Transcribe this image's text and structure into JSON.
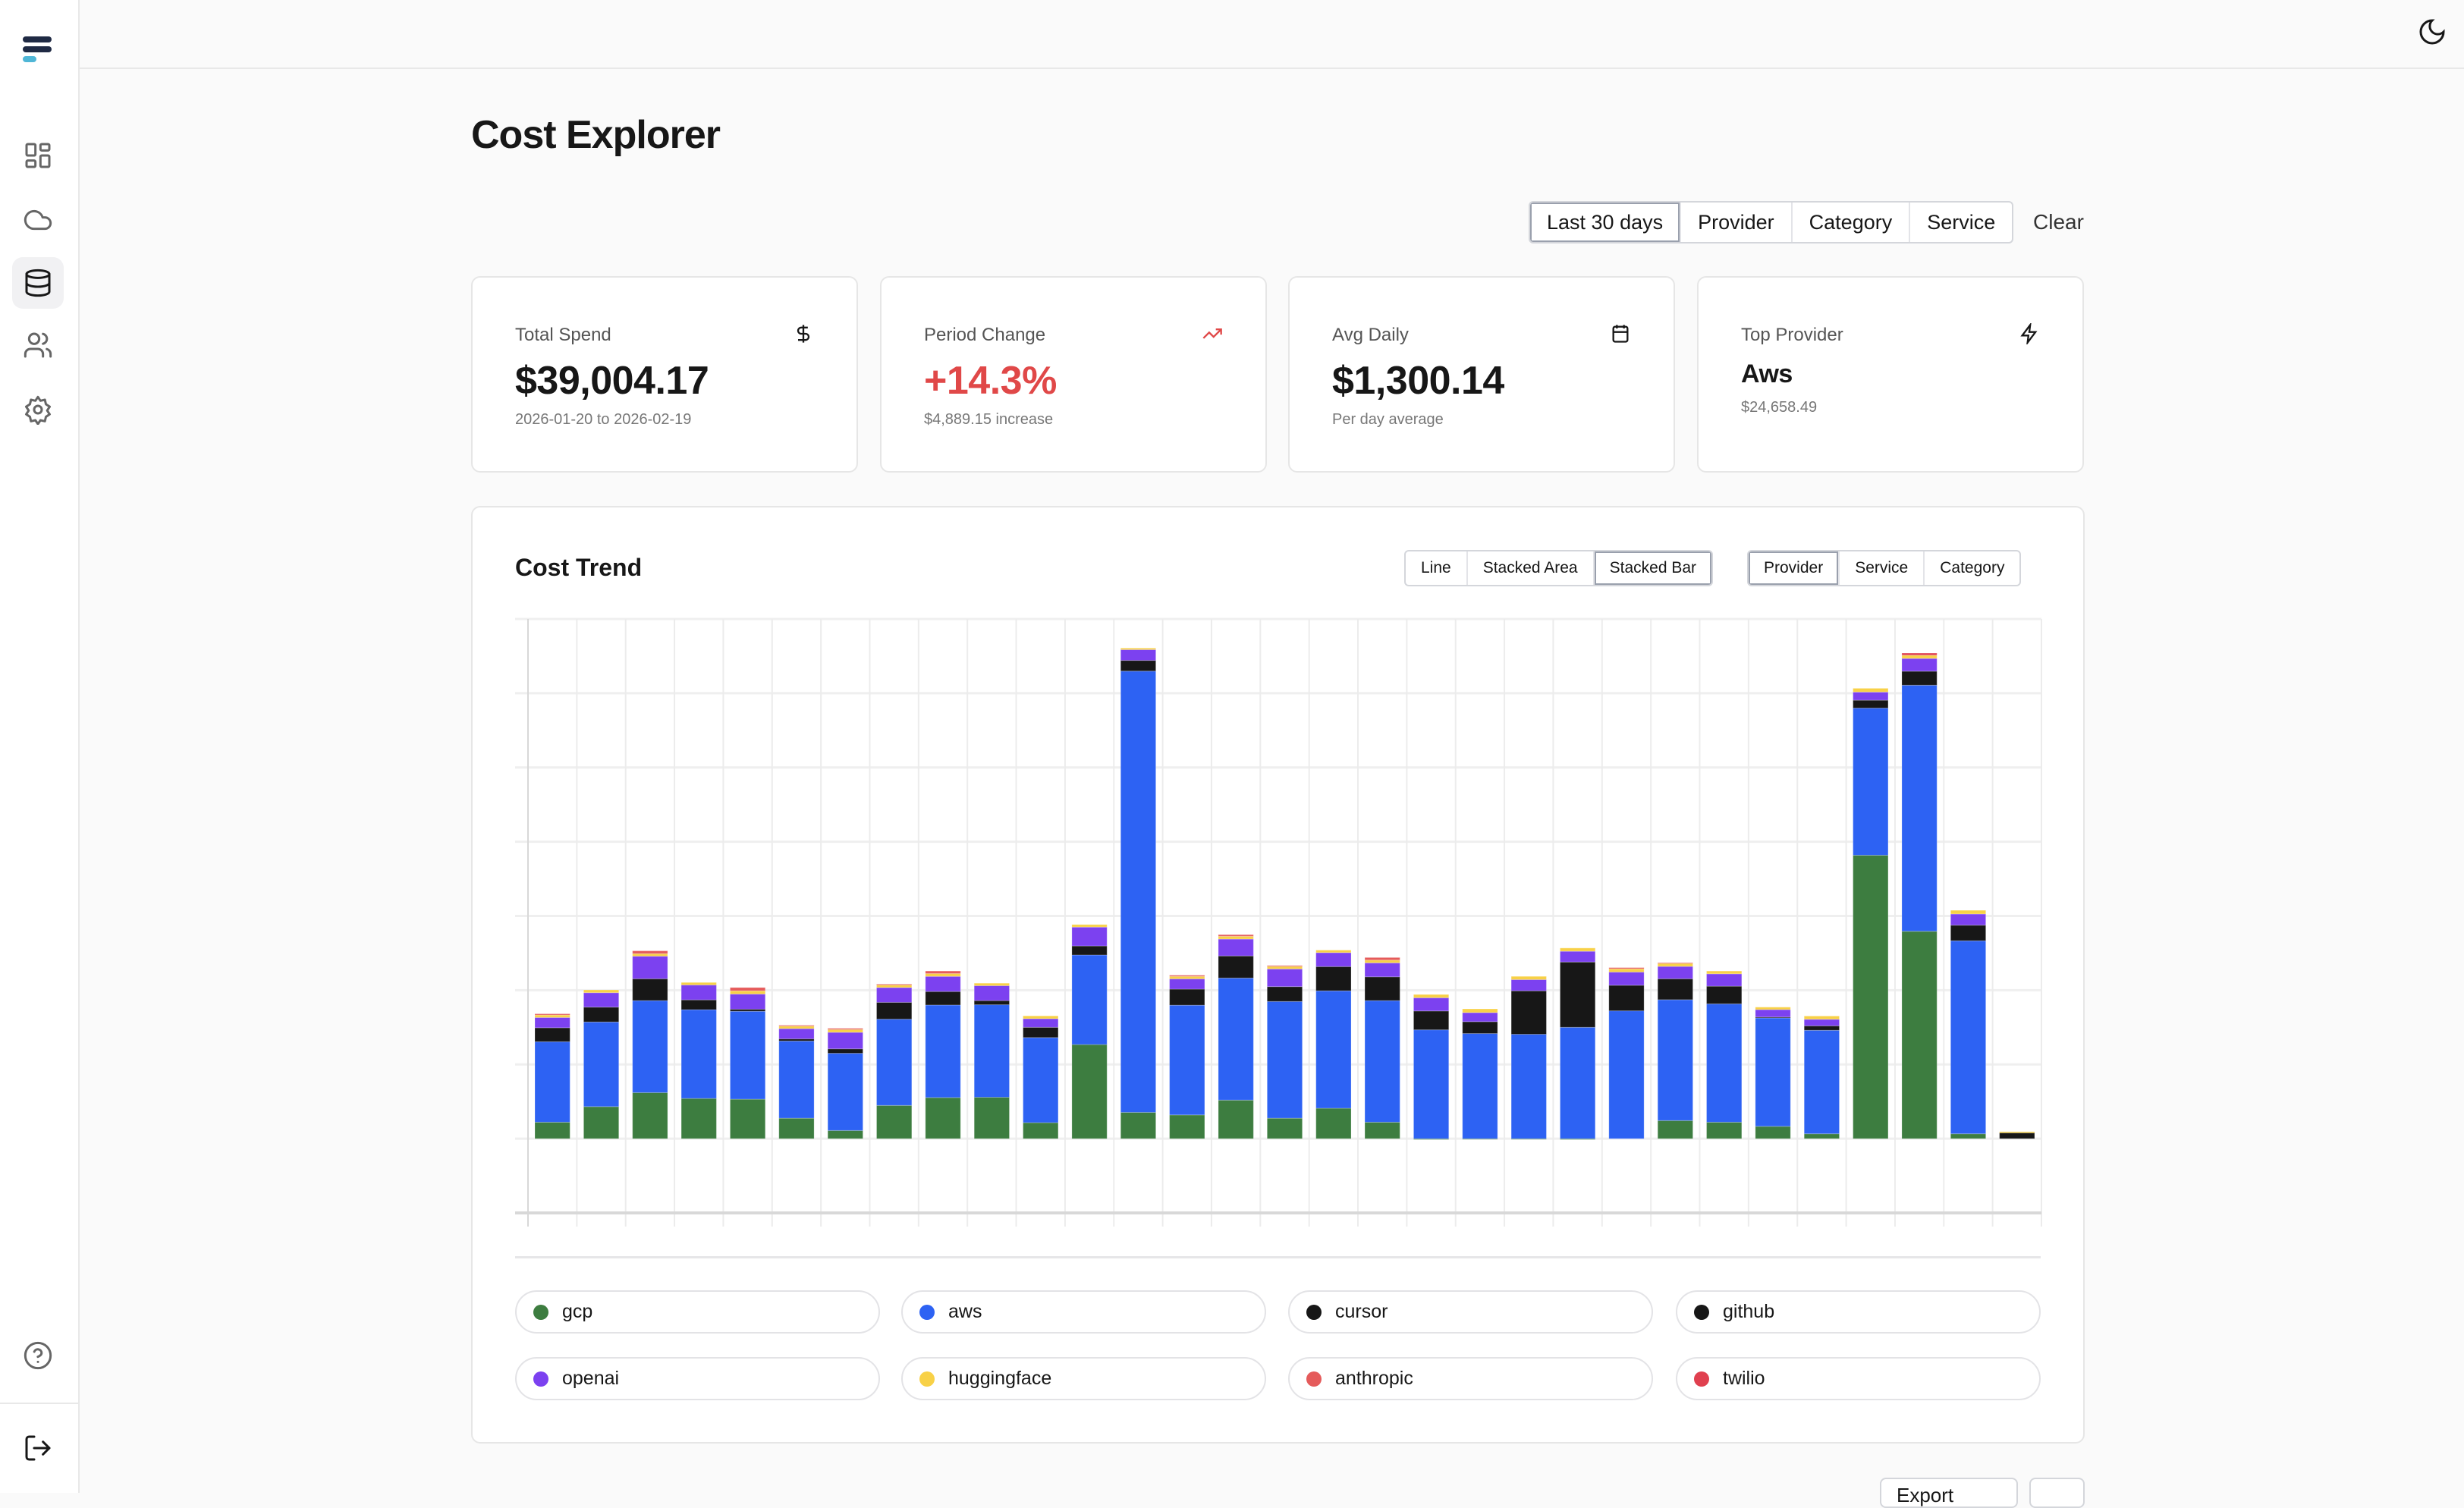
{
  "app": {
    "active_nav": "data"
  },
  "sidebar": {
    "items": [
      {
        "name": "dashboard",
        "icon": "grid-icon"
      },
      {
        "name": "cloud",
        "icon": "cloud-icon"
      },
      {
        "name": "data",
        "icon": "database-icon"
      },
      {
        "name": "users",
        "icon": "users-icon"
      },
      {
        "name": "settings",
        "icon": "gear-icon"
      }
    ],
    "bottom": [
      "help-icon",
      "logout-icon"
    ]
  },
  "header": {
    "theme_icon": "moon-icon"
  },
  "page": {
    "title": "Cost Explorer"
  },
  "filters": {
    "items": [
      "Last 30 days",
      "Provider",
      "Category",
      "Service"
    ],
    "clear": "Clear"
  },
  "kpis": [
    {
      "label": "Total Spend",
      "value": "$39,004.17",
      "sub": "2026-01-20 to 2026-02-19",
      "icon": "dollar-icon"
    },
    {
      "label": "Period Change",
      "value": "+14.3%",
      "sub": "$4,889.15 increase",
      "icon": "trending-up-icon",
      "color": "#e04848"
    },
    {
      "label": "Avg Daily",
      "value": "$1,300.14",
      "sub": "Per day average",
      "icon": "calendar-icon"
    },
    {
      "label": "Top Provider",
      "value": "Aws",
      "sub": "$24,658.49",
      "icon": "zap-icon"
    }
  ],
  "cost_trend": {
    "title": "Cost Trend",
    "chart_types": [
      "Line",
      "Stacked Area",
      "Stacked Bar"
    ],
    "chart_type_selected": "Stacked Bar",
    "group_by": [
      "Provider",
      "Service",
      "Category"
    ],
    "group_by_selected": "Provider"
  },
  "chart_data": {
    "type": "bar",
    "stacked": true,
    "ylim": [
      -500,
      3500
    ],
    "grid": true,
    "legend_position": "bottom",
    "series": [
      {
        "name": "gcp",
        "color": "#3d7d40",
        "values": [
          111,
          216,
          310,
          271,
          266,
          138,
          55,
          224,
          277,
          279,
          108,
          634,
          177,
          160,
          260,
          138,
          205,
          111,
          -6,
          -3,
          -3,
          -6,
          0,
          122,
          111,
          83,
          33,
          1909,
          1397,
          33,
          0
        ]
      },
      {
        "name": "aws",
        "color": "#2d62f3",
        "values": [
          542,
          570,
          620,
          598,
          592,
          520,
          520,
          581,
          623,
          623,
          573,
          603,
          2972,
          739,
          822,
          786,
          791,
          819,
          733,
          708,
          703,
          750,
          861,
          814,
          797,
          730,
          697,
          991,
          1657,
          1300,
          0
        ]
      },
      {
        "name": "cursor",
        "color": "#171717",
        "values": [
          94,
          100,
          147,
          66,
          14,
          14,
          30,
          113,
          91,
          28,
          69,
          61,
          72,
          108,
          149,
          100,
          163,
          160,
          127,
          80,
          293,
          440,
          172,
          141,
          119,
          6,
          30,
          53,
          94,
          105,
          39
        ]
      },
      {
        "name": "github",
        "color": "#171717",
        "values": [
          0,
          0,
          0,
          0,
          0,
          0,
          0,
          0,
          0,
          0,
          0,
          0,
          0,
          0,
          0,
          0,
          0,
          0,
          0,
          0,
          0,
          0,
          0,
          0,
          0,
          0,
          0,
          0,
          0,
          0,
          0
        ]
      },
      {
        "name": "openai",
        "color": "#7c41f0",
        "values": [
          69,
          97,
          152,
          100,
          102,
          69,
          111,
          100,
          102,
          100,
          58,
          127,
          72,
          69,
          113,
          119,
          94,
          94,
          89,
          61,
          75,
          72,
          89,
          83,
          83,
          50,
          44,
          55,
          86,
          75,
          0
        ]
      },
      {
        "name": "huggingface",
        "color": "#f8d147",
        "values": [
          17,
          19,
          17,
          17,
          22,
          17,
          19,
          17,
          19,
          17,
          19,
          17,
          11,
          17,
          19,
          17,
          17,
          19,
          22,
          25,
          22,
          22,
          22,
          22,
          19,
          17,
          22,
          25,
          22,
          25,
          8
        ]
      },
      {
        "name": "anthropic",
        "color": "#e55b5b",
        "values": [
          8,
          0,
          19,
          0,
          22,
          6,
          8,
          6,
          17,
          0,
          0,
          0,
          0,
          8,
          11,
          6,
          0,
          17,
          0,
          0,
          0,
          0,
          8,
          3,
          0,
          0,
          0,
          0,
          0,
          0,
          0
        ]
      },
      {
        "name": "twilio",
        "color": "#e0404f",
        "values": [
          0,
          0,
          0,
          0,
          0,
          0,
          0,
          0,
          0,
          0,
          0,
          0,
          0,
          0,
          0,
          0,
          0,
          0,
          0,
          0,
          0,
          0,
          0,
          0,
          0,
          0,
          0,
          0,
          14,
          0,
          0
        ]
      }
    ]
  },
  "bottom_actions": [
    "Export"
  ]
}
